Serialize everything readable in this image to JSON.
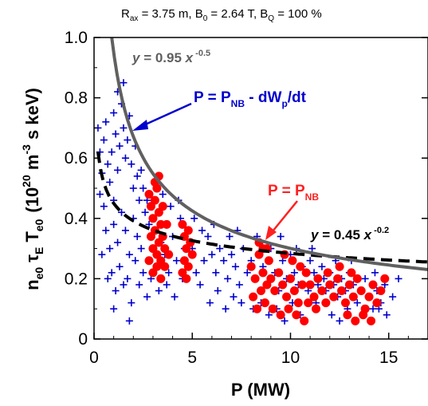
{
  "chart_data": {
    "type": "scatter",
    "title_parts": {
      "r": "R",
      "r_sub": "ax",
      "r_val": " = 3.75 m, B",
      "b0_sub": "0",
      "b0_val": " = 2.64 T, B",
      "bq_sub": "Q",
      "bq_val": " = 100 %"
    },
    "xlabel": "P (MW)",
    "ylabel_parts": {
      "n": "n",
      "n_sub": "e0",
      "tau": "τ",
      "tau_sub": "E",
      "t": "T",
      "t_sub": "e0",
      "unit_open": "(10",
      "unit_exp1": "20",
      "unit_mid": " m",
      "unit_exp2": "-3",
      "unit_close": " s keV)"
    },
    "xlim": [
      0,
      17
    ],
    "ylim": [
      0,
      1.0
    ],
    "xticks": [
      0,
      5,
      10,
      15
    ],
    "xtick_labels": [
      "0",
      "5",
      "10",
      "15"
    ],
    "yticks": [
      0,
      0.2,
      0.4,
      0.6,
      0.8,
      1.0
    ],
    "ytick_labels": [
      "0",
      "0.2",
      "0.4",
      "0.6",
      "0.8",
      "1.0"
    ],
    "grid": false,
    "colors": {
      "pnb_series": "#ff0000",
      "absorbed_series": "#0000cc",
      "fit_upper": "#606060",
      "fit_lower": "#000000",
      "annotation_red": "#ff2020",
      "annotation_blue": "#0000cc"
    },
    "annotations": {
      "blue": {
        "p": "P = P",
        "sub": "NB",
        "rest": " - dW",
        "sub2": "p",
        "rest2": "/dt"
      },
      "red": {
        "p": "P = P",
        "sub": "NB"
      },
      "fit_upper": {
        "y": "y",
        "eq": " = 0.95 ",
        "x": "x",
        "exp": " -0.5"
      },
      "fit_lower": {
        "y": "y",
        "eq": " = 0.45 ",
        "x": "x",
        "exp": " -0.2"
      }
    },
    "fits": [
      {
        "coef": 0.95,
        "exponent": -0.5,
        "x_range": [
          0.9,
          17
        ],
        "style": "solid"
      },
      {
        "coef": 0.45,
        "exponent": -0.2,
        "x_range": [
          0.2,
          17
        ],
        "style": "dashed"
      }
    ],
    "series": [
      {
        "marker": "plus",
        "points": [
          [
            0.2,
            0.7
          ],
          [
            0.3,
            0.62
          ],
          [
            0.4,
            0.55
          ],
          [
            0.5,
            0.66
          ],
          [
            0.6,
            0.72
          ],
          [
            0.7,
            0.58
          ],
          [
            0.3,
            0.48
          ],
          [
            0.5,
            0.44
          ],
          [
            0.8,
            0.52
          ],
          [
            0.9,
            0.62
          ],
          [
            1.0,
            0.75
          ],
          [
            1.1,
            0.68
          ],
          [
            1.2,
            0.56
          ],
          [
            1.0,
            0.46
          ],
          [
            1.3,
            0.64
          ],
          [
            1.4,
            0.78
          ],
          [
            1.5,
            0.7
          ],
          [
            1.6,
            0.6
          ],
          [
            1.7,
            0.66
          ],
          [
            1.8,
            0.74
          ],
          [
            1.2,
            0.82
          ],
          [
            1.5,
            0.85
          ],
          [
            1.9,
            0.58
          ],
          [
            2.0,
            0.5
          ],
          [
            2.1,
            0.64
          ],
          [
            2.2,
            0.54
          ],
          [
            2.3,
            0.46
          ],
          [
            2.4,
            0.56
          ],
          [
            2.5,
            0.5
          ],
          [
            2.6,
            0.42
          ],
          [
            0.6,
            0.36
          ],
          [
            0.8,
            0.3
          ],
          [
            1.0,
            0.38
          ],
          [
            1.2,
            0.32
          ],
          [
            1.4,
            0.42
          ],
          [
            1.6,
            0.36
          ],
          [
            1.8,
            0.28
          ],
          [
            2.0,
            0.4
          ],
          [
            2.2,
            0.34
          ],
          [
            2.4,
            0.3
          ],
          [
            0.9,
            0.22
          ],
          [
            1.3,
            0.24
          ],
          [
            1.7,
            0.2
          ],
          [
            2.1,
            0.26
          ],
          [
            2.5,
            0.22
          ],
          [
            1.1,
            0.16
          ],
          [
            1.5,
            0.18
          ],
          [
            1.9,
            0.12
          ],
          [
            2.3,
            0.18
          ],
          [
            2.7,
            0.14
          ],
          [
            2.8,
            0.38
          ],
          [
            3.0,
            0.3
          ],
          [
            3.2,
            0.24
          ],
          [
            3.4,
            0.32
          ],
          [
            3.6,
            0.28
          ],
          [
            3.8,
            0.22
          ],
          [
            4.0,
            0.34
          ],
          [
            4.2,
            0.26
          ],
          [
            4.4,
            0.4
          ],
          [
            4.6,
            0.3
          ],
          [
            2.9,
            0.2
          ],
          [
            3.3,
            0.16
          ],
          [
            3.7,
            0.18
          ],
          [
            4.1,
            0.14
          ],
          [
            4.5,
            0.2
          ],
          [
            4.8,
            0.24
          ],
          [
            5.0,
            0.3
          ],
          [
            5.2,
            0.22
          ],
          [
            5.4,
            0.18
          ],
          [
            5.6,
            0.26
          ],
          [
            5.8,
            0.34
          ],
          [
            6.0,
            0.28
          ],
          [
            6.2,
            0.22
          ],
          [
            6.4,
            0.3
          ],
          [
            6.6,
            0.26
          ],
          [
            6.8,
            0.2
          ],
          [
            7.0,
            0.28
          ],
          [
            7.2,
            0.24
          ],
          [
            7.4,
            0.18
          ],
          [
            7.6,
            0.3
          ],
          [
            5.9,
            0.12
          ],
          [
            6.3,
            0.16
          ],
          [
            6.7,
            0.1
          ],
          [
            7.1,
            0.14
          ],
          [
            7.5,
            0.12
          ],
          [
            7.8,
            0.22
          ],
          [
            8.0,
            0.26
          ],
          [
            8.2,
            0.2
          ],
          [
            8.4,
            0.28
          ],
          [
            8.6,
            0.24
          ],
          [
            8.8,
            0.18
          ],
          [
            9.0,
            0.3
          ],
          [
            9.2,
            0.22
          ],
          [
            9.4,
            0.16
          ],
          [
            9.6,
            0.26
          ],
          [
            9.8,
            0.2
          ],
          [
            10.0,
            0.28
          ],
          [
            10.2,
            0.22
          ],
          [
            10.4,
            0.18
          ],
          [
            10.6,
            0.24
          ],
          [
            8.1,
            0.1
          ],
          [
            8.5,
            0.12
          ],
          [
            8.9,
            0.08
          ],
          [
            9.3,
            0.1
          ],
          [
            9.7,
            0.06
          ],
          [
            10.1,
            0.12
          ],
          [
            10.5,
            0.08
          ],
          [
            10.9,
            0.16
          ],
          [
            11.3,
            0.12
          ],
          [
            11.7,
            0.2
          ],
          [
            11.0,
            0.26
          ],
          [
            11.2,
            0.22
          ],
          [
            11.4,
            0.18
          ],
          [
            11.6,
            0.24
          ],
          [
            11.8,
            0.16
          ],
          [
            12.0,
            0.22
          ],
          [
            12.2,
            0.18
          ],
          [
            12.4,
            0.14
          ],
          [
            12.6,
            0.2
          ],
          [
            12.8,
            0.16
          ],
          [
            13.0,
            0.22
          ],
          [
            13.2,
            0.18
          ],
          [
            13.4,
            0.12
          ],
          [
            13.6,
            0.16
          ],
          [
            13.8,
            0.2
          ],
          [
            14.0,
            0.14
          ],
          [
            14.2,
            0.1
          ],
          [
            14.4,
            0.16
          ],
          [
            14.6,
            0.12
          ],
          [
            14.8,
            0.18
          ],
          [
            12.1,
            0.08
          ],
          [
            12.5,
            0.06
          ],
          [
            12.9,
            0.1
          ],
          [
            13.3,
            0.06
          ],
          [
            13.7,
            0.08
          ],
          [
            14.1,
            0.06
          ],
          [
            14.5,
            0.1
          ],
          [
            14.9,
            0.08
          ],
          [
            15.2,
            0.14
          ],
          [
            15.5,
            0.2
          ],
          [
            5.1,
            0.4
          ],
          [
            5.5,
            0.36
          ],
          [
            6.1,
            0.38
          ],
          [
            4.3,
            0.46
          ],
          [
            3.9,
            0.44
          ],
          [
            3.5,
            0.48
          ],
          [
            2.7,
            0.46
          ],
          [
            6.9,
            0.34
          ],
          [
            7.3,
            0.36
          ],
          [
            8.3,
            0.34
          ],
          [
            9.5,
            0.34
          ],
          [
            10.3,
            0.3
          ],
          [
            11.1,
            0.3
          ],
          [
            12.3,
            0.26
          ],
          [
            13.1,
            0.26
          ],
          [
            14.3,
            0.22
          ],
          [
            0.4,
            0.28
          ],
          [
            0.7,
            0.2
          ],
          [
            1.0,
            0.1
          ],
          [
            1.8,
            0.06
          ]
        ]
      },
      {
        "marker": "dot",
        "points": [
          [
            2.8,
            0.48
          ],
          [
            2.9,
            0.44
          ],
          [
            3.0,
            0.4
          ],
          [
            3.1,
            0.46
          ],
          [
            3.2,
            0.5
          ],
          [
            3.3,
            0.42
          ],
          [
            3.4,
            0.38
          ],
          [
            3.5,
            0.44
          ],
          [
            2.9,
            0.34
          ],
          [
            3.0,
            0.3
          ],
          [
            3.1,
            0.36
          ],
          [
            3.2,
            0.28
          ],
          [
            3.3,
            0.32
          ],
          [
            3.4,
            0.26
          ],
          [
            3.5,
            0.34
          ],
          [
            3.6,
            0.3
          ],
          [
            3.0,
            0.22
          ],
          [
            3.2,
            0.24
          ],
          [
            3.4,
            0.2
          ],
          [
            3.6,
            0.24
          ],
          [
            3.1,
            0.52
          ],
          [
            3.3,
            0.54
          ],
          [
            2.8,
            0.26
          ],
          [
            3.7,
            0.38
          ],
          [
            3.8,
            0.28
          ],
          [
            4.5,
            0.38
          ],
          [
            4.6,
            0.34
          ],
          [
            4.7,
            0.3
          ],
          [
            4.8,
            0.36
          ],
          [
            4.9,
            0.32
          ],
          [
            4.6,
            0.26
          ],
          [
            4.8,
            0.24
          ],
          [
            5.0,
            0.28
          ],
          [
            4.5,
            0.22
          ],
          [
            4.7,
            0.2
          ],
          [
            8.0,
            0.24
          ],
          [
            8.2,
            0.2
          ],
          [
            8.4,
            0.28
          ],
          [
            8.6,
            0.22
          ],
          [
            8.8,
            0.18
          ],
          [
            8.1,
            0.14
          ],
          [
            8.3,
            0.1
          ],
          [
            8.5,
            0.16
          ],
          [
            8.7,
            0.12
          ],
          [
            8.9,
            0.26
          ],
          [
            8.4,
            0.32
          ],
          [
            8.6,
            0.3
          ],
          [
            9.0,
            0.2
          ],
          [
            9.2,
            0.16
          ],
          [
            9.4,
            0.22
          ],
          [
            9.6,
            0.18
          ],
          [
            9.8,
            0.14
          ],
          [
            10.0,
            0.2
          ],
          [
            10.2,
            0.16
          ],
          [
            10.4,
            0.12
          ],
          [
            9.1,
            0.1
          ],
          [
            9.5,
            0.08
          ],
          [
            9.9,
            0.1
          ],
          [
            10.3,
            0.08
          ],
          [
            10.6,
            0.18
          ],
          [
            10.8,
            0.22
          ],
          [
            11.0,
            0.18
          ],
          [
            11.2,
            0.14
          ],
          [
            11.4,
            0.2
          ],
          [
            11.6,
            0.16
          ],
          [
            10.1,
            0.26
          ],
          [
            10.5,
            0.24
          ],
          [
            10.9,
            0.12
          ],
          [
            11.3,
            0.1
          ],
          [
            11.8,
            0.12
          ],
          [
            12.0,
            0.18
          ],
          [
            12.2,
            0.14
          ],
          [
            12.4,
            0.2
          ],
          [
            12.6,
            0.16
          ],
          [
            12.8,
            0.12
          ],
          [
            13.0,
            0.18
          ],
          [
            13.2,
            0.14
          ],
          [
            13.4,
            0.2
          ],
          [
            13.6,
            0.16
          ],
          [
            13.8,
            0.1
          ],
          [
            14.0,
            0.14
          ],
          [
            14.2,
            0.18
          ],
          [
            14.4,
            0.12
          ],
          [
            14.6,
            0.16
          ],
          [
            12.9,
            0.08
          ],
          [
            13.3,
            0.06
          ],
          [
            13.7,
            0.08
          ],
          [
            14.1,
            0.06
          ],
          [
            12.5,
            0.24
          ],
          [
            13.1,
            0.22
          ],
          [
            9.7,
            0.28
          ],
          [
            8.8,
            0.3
          ],
          [
            11.9,
            0.22
          ],
          [
            14.8,
            0.2
          ],
          [
            10.7,
            0.06
          ]
        ]
      }
    ]
  }
}
